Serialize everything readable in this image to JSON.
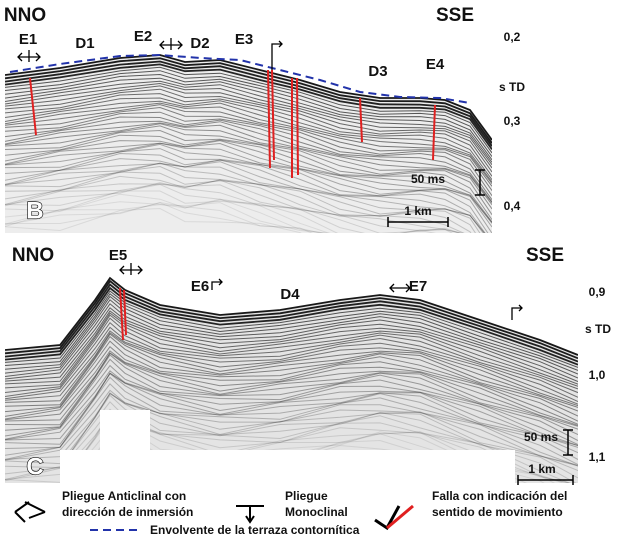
{
  "panels": [
    {
      "label": "B",
      "left": "NNO",
      "right": "SSE",
      "features": [
        "E1",
        "D1",
        "E2",
        "D2",
        "E3",
        "D3",
        "E4"
      ],
      "axis": [
        "0,2",
        "s TD",
        "0,3",
        "0,4"
      ],
      "scale_time": "50 ms",
      "scale_distance": "1 km"
    },
    {
      "label": "C",
      "left": "NNO",
      "right": "SSE",
      "features": [
        "E5",
        "E6",
        "D4",
        "E7"
      ],
      "axis": [
        "0,9",
        "s TD",
        "1,0",
        "1,1"
      ],
      "scale_time": "50 ms",
      "scale_distance": "1 km"
    }
  ],
  "legend": {
    "anticline": [
      "Pliegue Anticlinal con",
      "dirección de inmersión"
    ],
    "monocline": [
      "Pliegue",
      "Monoclinal"
    ],
    "fault": [
      "Falla con indicación del",
      "sentido de movimiento"
    ],
    "envelope": "Envolvente de la terraza contornítica"
  }
}
